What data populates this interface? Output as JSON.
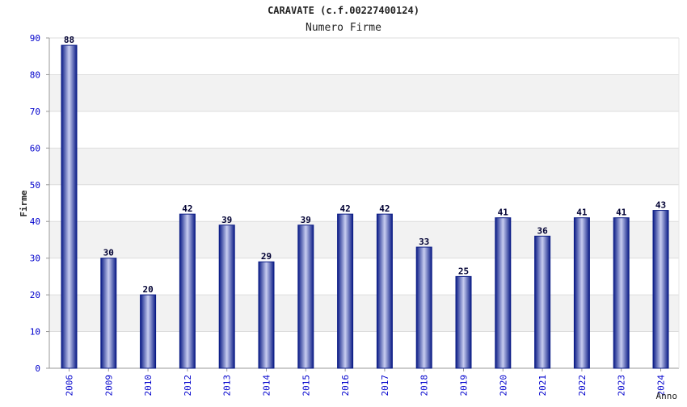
{
  "chart_data": {
    "type": "bar",
    "title": "CARAVATE (c.f.00227400124)",
    "subtitle": "Numero Firme",
    "xlabel": "Anno",
    "ylabel": "Firme",
    "categories": [
      "2006",
      "2009",
      "2010",
      "2012",
      "2013",
      "2014",
      "2015",
      "2016",
      "2017",
      "2018",
      "2019",
      "2020",
      "2021",
      "2022",
      "2023",
      "2024"
    ],
    "values": [
      88,
      30,
      20,
      42,
      39,
      29,
      39,
      42,
      42,
      33,
      25,
      41,
      36,
      41,
      41,
      43
    ],
    "ylim": [
      0,
      90
    ],
    "yticks": [
      0,
      10,
      20,
      30,
      40,
      50,
      60,
      70,
      80,
      90
    ],
    "grid": true,
    "legend": "none",
    "colors": {
      "bar_dark": "#0b1c86",
      "bar_light": "#c8cdf0",
      "value_label": "#000033",
      "tick_label": "#0000cc",
      "band": "#f2f2f2",
      "grid": "#dddddd",
      "axis": "#999999"
    }
  }
}
